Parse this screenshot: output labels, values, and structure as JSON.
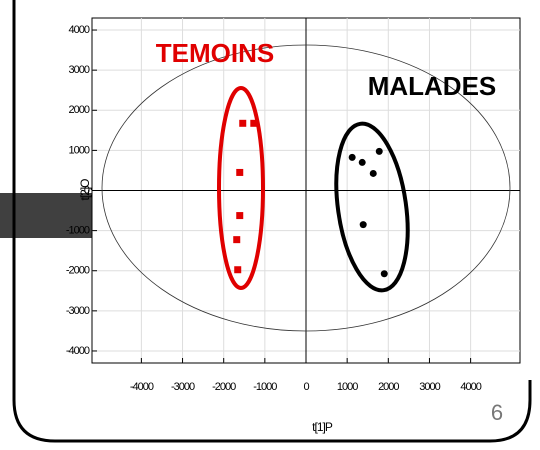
{
  "chart_data": {
    "type": "scatter",
    "xlabel": "t[1]P",
    "ylabel": "t[2]O",
    "xlim": [
      -5200,
      5200
    ],
    "ylim": [
      -4300,
      4300
    ],
    "xticks": [
      -4000,
      -3000,
      -2000,
      -1000,
      0,
      1000,
      2000,
      3000,
      4000
    ],
    "yticks": [
      -4000,
      -3000,
      -2000,
      -1000,
      0,
      1000,
      2000,
      3000,
      4000
    ],
    "grid": true,
    "series": [
      {
        "color": "#e00000",
        "marker": "square",
        "x": [
          -1537,
          -1268,
          -1610,
          -1610,
          -1683,
          -1659
        ],
        "y": [
          1675,
          1675,
          450,
          -625,
          -1225,
          -1975
        ]
      },
      {
        "color": "#000000",
        "marker": "circle",
        "x": [
          1122,
          1366,
          1780,
          1634,
          1390,
          1902
        ],
        "y": [
          825,
          700,
          975,
          425,
          -850,
          -2075
        ]
      }
    ],
    "annotations": [
      {
        "text": "TEMOINS",
        "color": "#e00000"
      },
      {
        "text": "MALADES",
        "color": "#000000"
      }
    ]
  },
  "slide": {
    "page_number": "6"
  }
}
